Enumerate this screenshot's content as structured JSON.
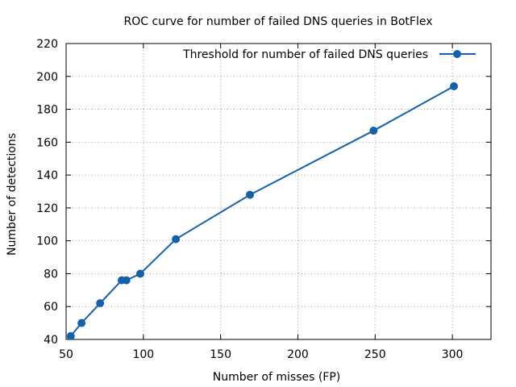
{
  "chart_data": {
    "type": "line",
    "title": "ROC curve for number of failed DNS queries in BotFlex",
    "xlabel": "Number of misses (FP)",
    "ylabel": "Number of detections",
    "xlim": [
      50,
      325
    ],
    "ylim": [
      40,
      220
    ],
    "xticks": [
      50,
      100,
      150,
      200,
      250,
      300
    ],
    "yticks": [
      40,
      60,
      80,
      100,
      120,
      140,
      160,
      180,
      200,
      220
    ],
    "grid": true,
    "legend_position": "top-right",
    "series": [
      {
        "name": "Threshold for number of failed DNS queries",
        "color": "#1660a8",
        "marker": "circle",
        "points": [
          [
            53,
            42
          ],
          [
            60,
            50
          ],
          [
            72,
            62
          ],
          [
            86,
            76
          ],
          [
            89,
            76
          ],
          [
            98,
            80
          ],
          [
            121,
            101
          ],
          [
            169,
            128
          ],
          [
            249,
            167
          ],
          [
            301,
            194
          ]
        ]
      }
    ]
  }
}
